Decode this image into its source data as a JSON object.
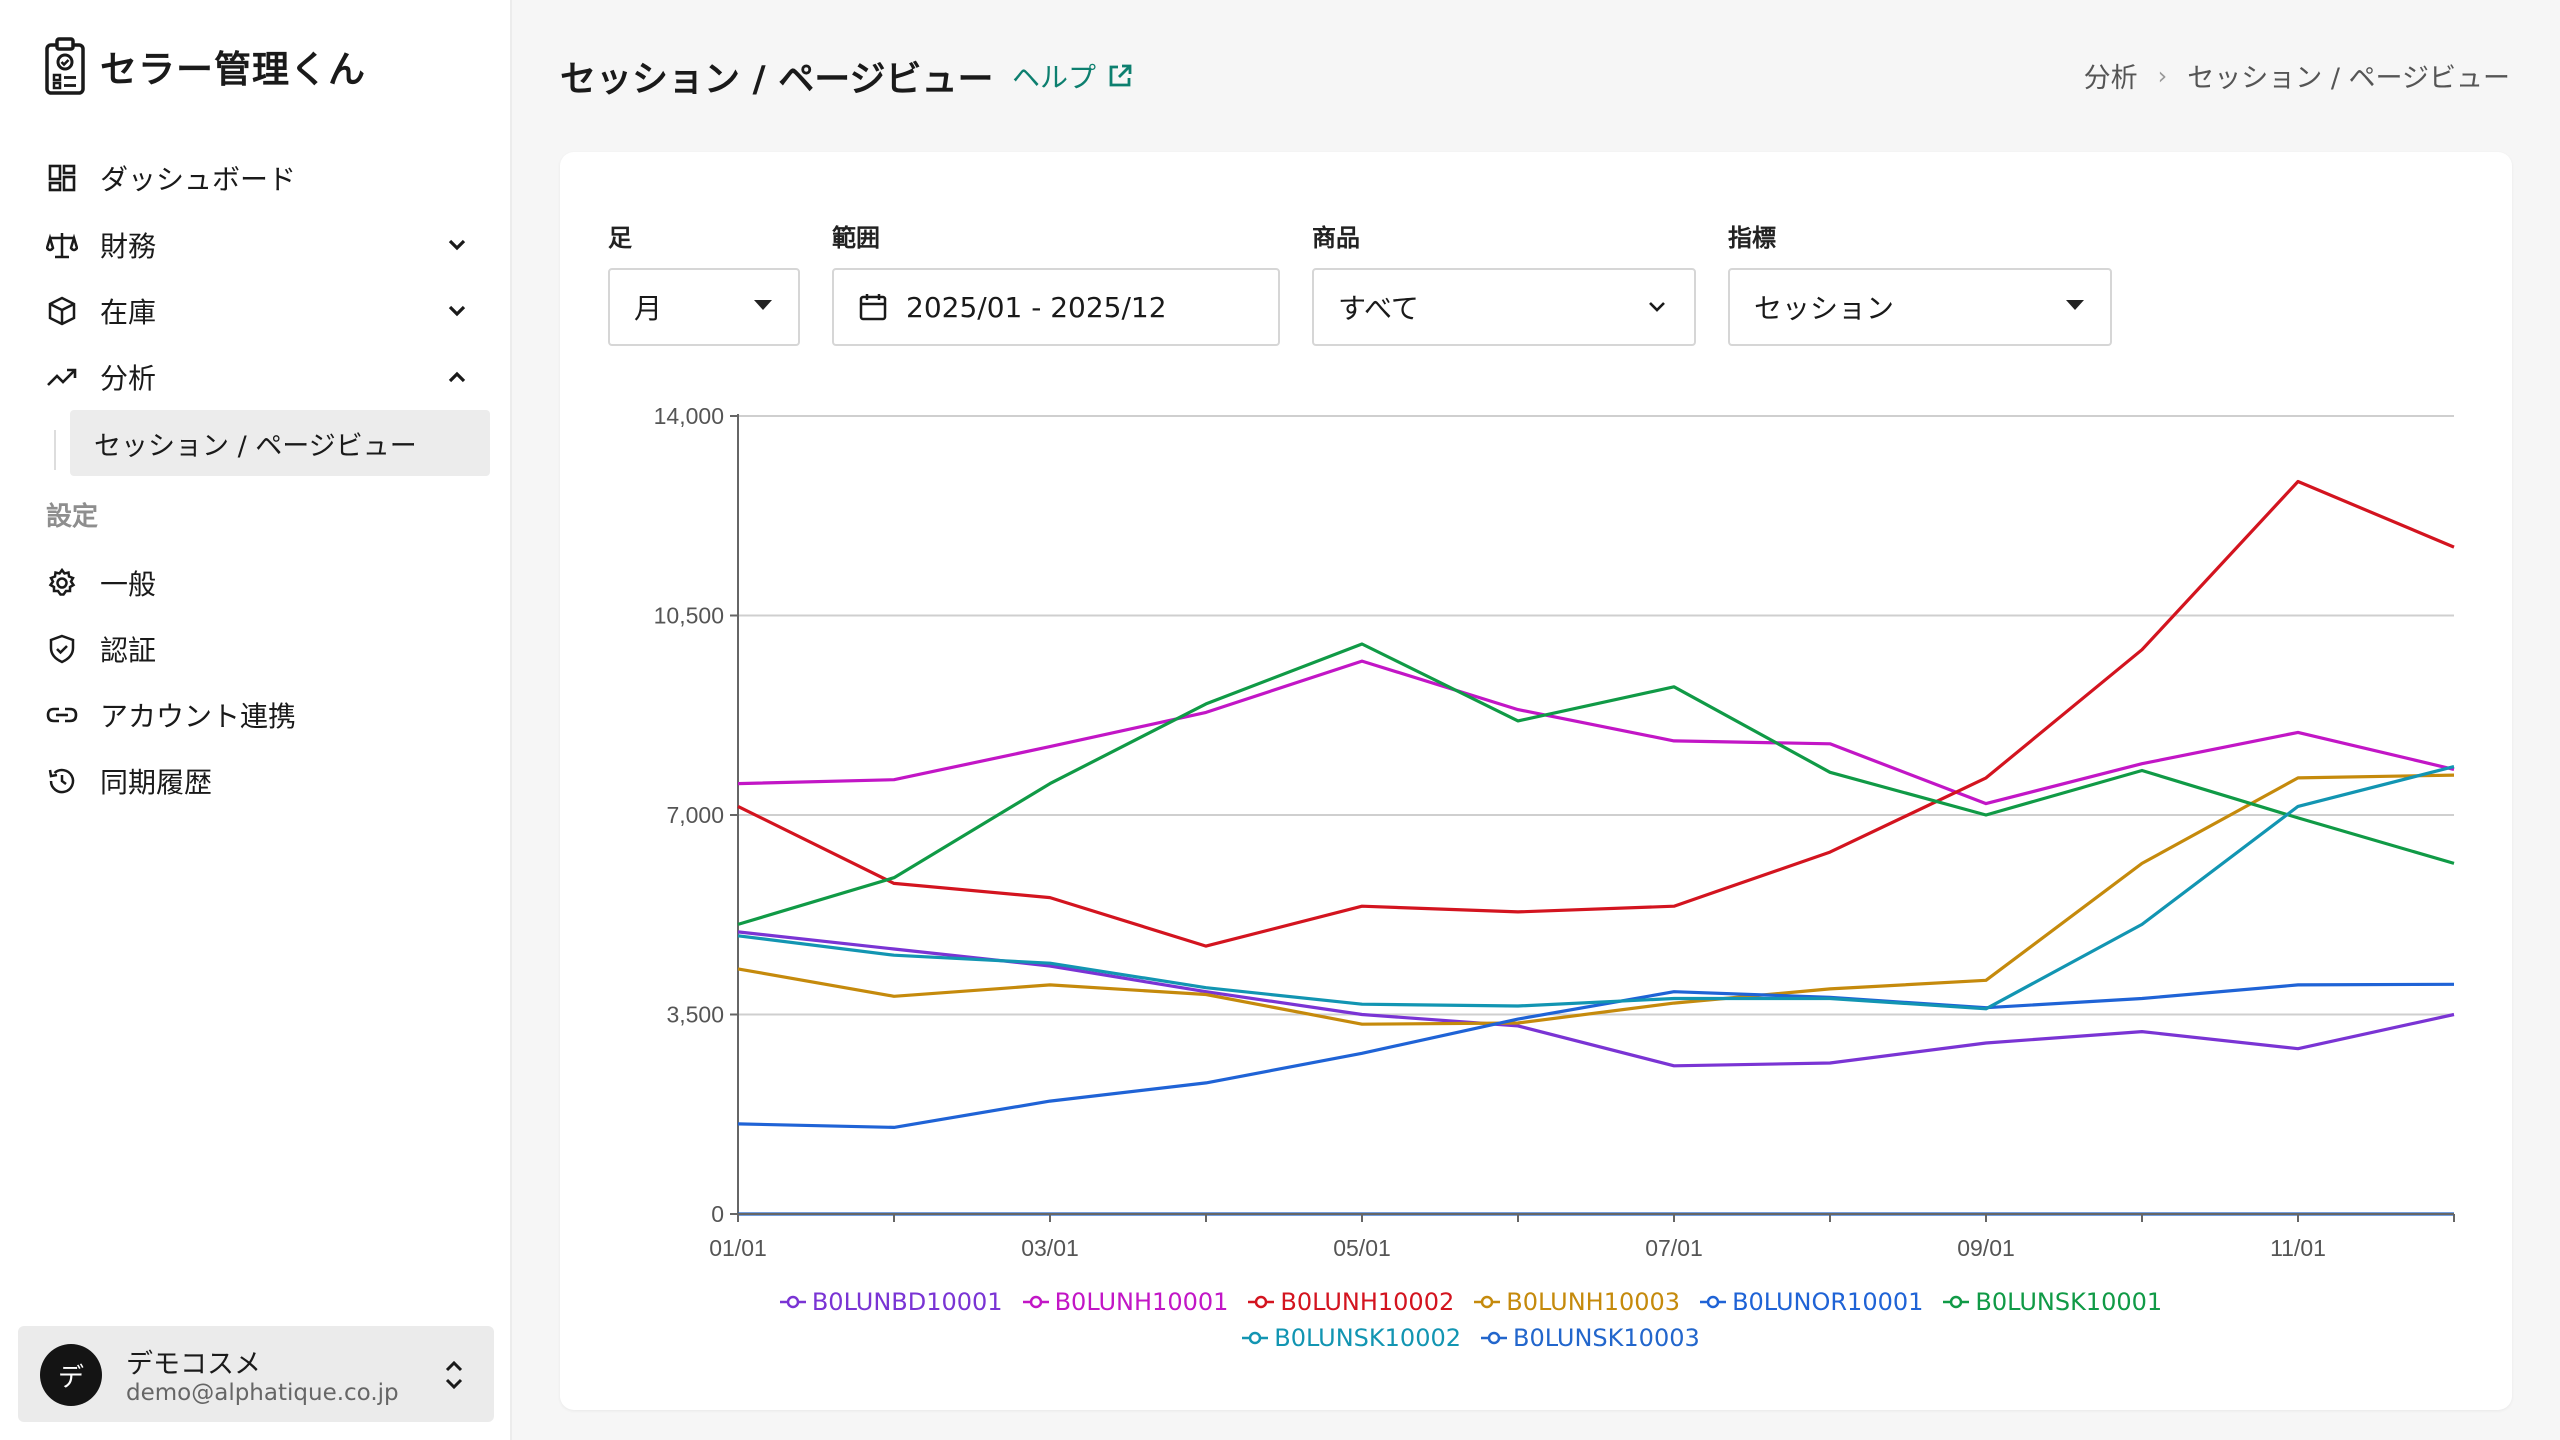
{
  "app": {
    "name": "セラー管理くん"
  },
  "sidebar": {
    "items": [
      {
        "label": "ダッシュボード",
        "icon": "dashboard-icon"
      },
      {
        "label": "財務",
        "icon": "scale-icon",
        "expand": "collapsed"
      },
      {
        "label": "在庫",
        "icon": "box-icon",
        "expand": "collapsed"
      },
      {
        "label": "分析",
        "icon": "trending-up-icon",
        "expand": "expanded"
      }
    ],
    "sub_item": "セッション / ページビュー",
    "settings_label": "設定",
    "settings_items": [
      {
        "label": "一般",
        "icon": "gear-icon"
      },
      {
        "label": "認証",
        "icon": "shield-check-icon"
      },
      {
        "label": "アカウント連携",
        "icon": "link-icon"
      },
      {
        "label": "同期履歴",
        "icon": "history-icon"
      }
    ],
    "user": {
      "avatar": "デ",
      "name": "デモコスメ",
      "email": "demo@alphatique.co.jp"
    }
  },
  "header": {
    "title": "セッション / ページビュー",
    "help": "ヘルプ",
    "breadcrumb": [
      "分析",
      "セッション / ページビュー"
    ]
  },
  "filters": {
    "interval": {
      "label": "足",
      "value": "月"
    },
    "range": {
      "label": "範囲",
      "value": "2025/01 - 2025/12"
    },
    "product": {
      "label": "商品",
      "value": "すべて"
    },
    "metric": {
      "label": "指標",
      "value": "セッション"
    }
  },
  "chart_data": {
    "type": "line",
    "x": [
      "01/01",
      "02/01",
      "03/01",
      "04/01",
      "05/01",
      "06/01",
      "07/01",
      "08/01",
      "09/01",
      "10/01",
      "11/01",
      "12/01"
    ],
    "x_tick_labels": [
      "01/01",
      "03/01",
      "05/01",
      "07/01",
      "09/01",
      "11/01"
    ],
    "ylim": [
      0,
      14000
    ],
    "y_ticks": [
      0,
      3500,
      7000,
      10500,
      14000
    ],
    "y_tick_labels": [
      "0",
      "3,500",
      "7,000",
      "10,500",
      "14,000"
    ],
    "grid": true,
    "legend": "bottom",
    "series": [
      {
        "name": "B0LUNBD10001",
        "color": "#7a34d4",
        "values": [
          4950,
          4650,
          4350,
          3900,
          3500,
          3300,
          2600,
          2650,
          3000,
          3200,
          2900,
          3500
        ]
      },
      {
        "name": "B0LUNH10001",
        "color": "#c216c6",
        "values": [
          7550,
          7620,
          8200,
          8800,
          9700,
          8850,
          8300,
          8250,
          7200,
          7900,
          8450,
          7800
        ]
      },
      {
        "name": "B0LUNH10002",
        "color": "#d3141f",
        "values": [
          7150,
          5800,
          5550,
          4700,
          5400,
          5300,
          5400,
          6350,
          7650,
          9900,
          12850,
          11700
        ]
      },
      {
        "name": "B0LUNH10003",
        "color": "#c58a0c",
        "values": [
          4300,
          3820,
          4020,
          3850,
          3330,
          3350,
          3700,
          3950,
          4100,
          6150,
          7650,
          7700
        ]
      },
      {
        "name": "B0LUNOR10001",
        "color": "#1f63d6",
        "values": [
          1580,
          1520,
          1980,
          2300,
          2820,
          3420,
          3900,
          3800,
          3620,
          3780,
          4020,
          4030
        ]
      },
      {
        "name": "B0LUNSK10001",
        "color": "#109a46",
        "values": [
          5080,
          5900,
          7550,
          8950,
          10000,
          8650,
          9250,
          7750,
          7000,
          7780,
          6950,
          6150
        ]
      },
      {
        "name": "B0LUNSK10002",
        "color": "#1295b2",
        "values": [
          4880,
          4540,
          4400,
          3970,
          3680,
          3650,
          3780,
          3780,
          3600,
          5080,
          7150,
          7850
        ]
      },
      {
        "name": "B0LUNSK10003",
        "color": "#2266cc",
        "values": [
          0,
          0,
          0,
          0,
          0,
          0,
          0,
          0,
          0,
          0,
          0,
          0
        ]
      }
    ]
  }
}
